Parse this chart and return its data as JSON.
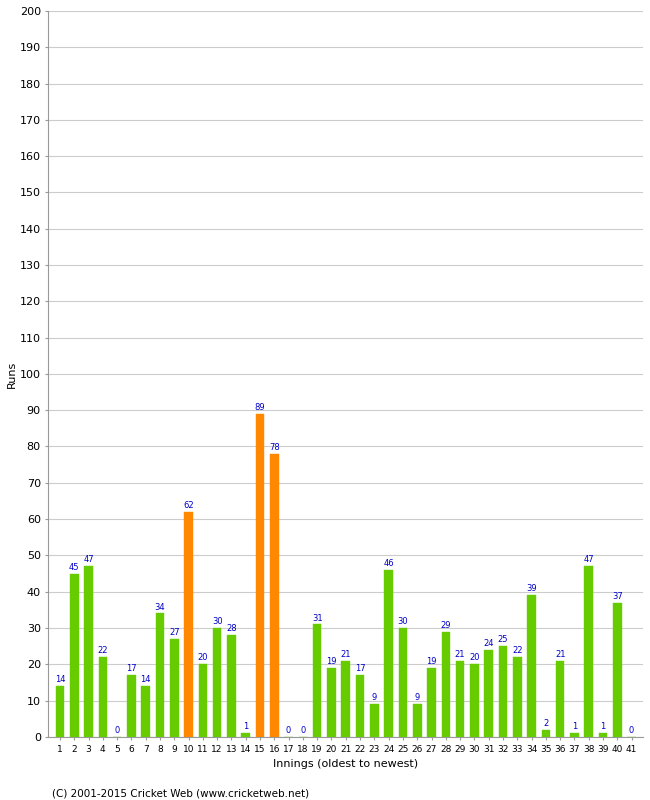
{
  "innings": [
    1,
    2,
    3,
    4,
    5,
    6,
    7,
    8,
    9,
    10,
    11,
    12,
    13,
    14,
    15,
    16,
    17,
    18,
    19,
    20,
    21,
    22,
    23,
    24,
    25,
    26,
    27,
    28,
    29,
    30,
    31,
    32,
    33,
    34,
    35,
    36,
    37,
    38,
    39,
    40,
    41
  ],
  "values": [
    14,
    45,
    47,
    22,
    0,
    17,
    14,
    34,
    27,
    62,
    20,
    30,
    28,
    1,
    89,
    78,
    0,
    0,
    31,
    19,
    21,
    17,
    9,
    46,
    30,
    9,
    19,
    29,
    21,
    20,
    24,
    25,
    22,
    39,
    2,
    21,
    1,
    47,
    1,
    37,
    0
  ],
  "colors": [
    "#66cc00",
    "#66cc00",
    "#66cc00",
    "#66cc00",
    "#66cc00",
    "#66cc00",
    "#66cc00",
    "#66cc00",
    "#66cc00",
    "#ff8800",
    "#66cc00",
    "#66cc00",
    "#66cc00",
    "#66cc00",
    "#ff8800",
    "#ff8800",
    "#66cc00",
    "#66cc00",
    "#66cc00",
    "#66cc00",
    "#66cc00",
    "#66cc00",
    "#66cc00",
    "#66cc00",
    "#66cc00",
    "#66cc00",
    "#66cc00",
    "#66cc00",
    "#66cc00",
    "#66cc00",
    "#66cc00",
    "#66cc00",
    "#66cc00",
    "#66cc00",
    "#66cc00",
    "#66cc00",
    "#66cc00",
    "#66cc00",
    "#66cc00",
    "#66cc00",
    "#66cc00"
  ],
  "ylabel": "Runs",
  "xlabel": "Innings (oldest to newest)",
  "ylim": [
    0,
    200
  ],
  "yticks": [
    0,
    10,
    20,
    30,
    40,
    50,
    60,
    70,
    80,
    90,
    100,
    110,
    120,
    130,
    140,
    150,
    160,
    170,
    180,
    190,
    200
  ],
  "footer": "(C) 2001-2015 Cricket Web (www.cricketweb.net)",
  "label_color": "#0000cc",
  "grid_color": "#cccccc",
  "bg_color": "#ffffff"
}
